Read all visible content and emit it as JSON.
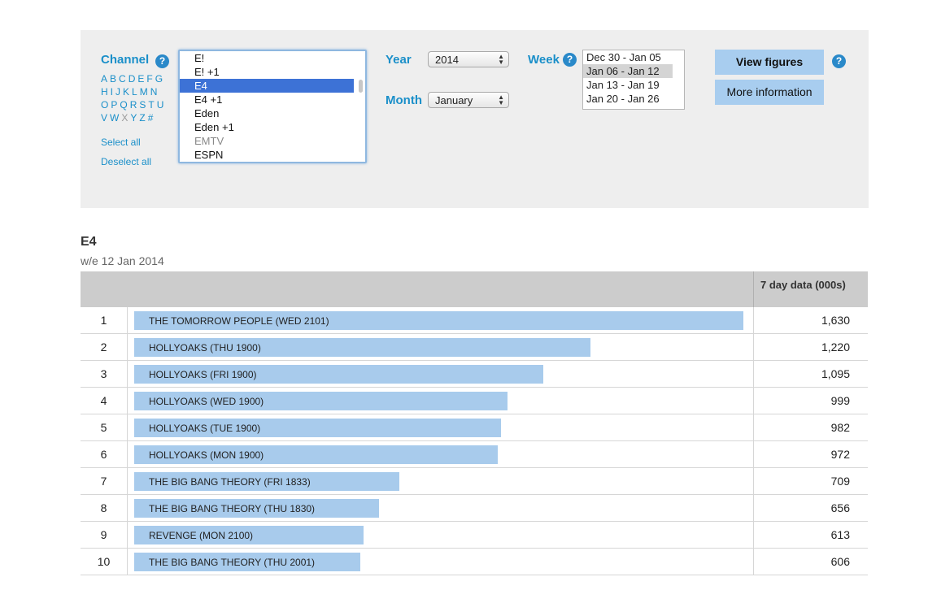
{
  "filters": {
    "channel_label": "Channel",
    "help": "?",
    "alphabet_rows": [
      [
        "A",
        "B",
        "C",
        "D",
        "E",
        "F",
        "G"
      ],
      [
        "H",
        "I",
        "J",
        "K",
        "L",
        "M",
        "N"
      ],
      [
        "O",
        "P",
        "Q",
        "R",
        "S",
        "T",
        "U"
      ],
      [
        "V",
        "W",
        "X",
        "Y",
        "Z",
        "#"
      ]
    ],
    "alphabet_disabled": [
      "X"
    ],
    "select_all": "Select all",
    "deselect_all": "Deselect all",
    "channels": [
      "E!",
      "E! +1",
      "E4",
      "E4 +1",
      "Eden",
      "Eden +1",
      "EMTV",
      "ESPN"
    ],
    "channel_selected": "E4",
    "channel_disabled": [
      "EMTV"
    ],
    "year_label": "Year",
    "year_value": "2014",
    "month_label": "Month",
    "month_value": "January",
    "week_label": "Week",
    "weeks": [
      "Dec 30 - Jan 05",
      "Jan 06 - Jan 12",
      "Jan 13 - Jan 19",
      "Jan 20 - Jan 26"
    ],
    "week_selected": "Jan 06 - Jan 12",
    "view_figures": "View figures",
    "more_information": "More information"
  },
  "result": {
    "channel": "E4",
    "week_ending": "w/e 12 Jan 2014",
    "column_header": "7 day data (000s)",
    "rows": [
      {
        "rank": "1",
        "programme": "THE TOMORROW PEOPLE (WED 2101)",
        "value": "1,630",
        "num": 1630
      },
      {
        "rank": "2",
        "programme": "HOLLYOAKS (THU 1900)",
        "value": "1,220",
        "num": 1220
      },
      {
        "rank": "3",
        "programme": "HOLLYOAKS (FRI 1900)",
        "value": "1,095",
        "num": 1095
      },
      {
        "rank": "4",
        "programme": "HOLLYOAKS (WED 1900)",
        "value": "999",
        "num": 999
      },
      {
        "rank": "5",
        "programme": "HOLLYOAKS (TUE 1900)",
        "value": "982",
        "num": 982
      },
      {
        "rank": "6",
        "programme": "HOLLYOAKS (MON 1900)",
        "value": "972",
        "num": 972
      },
      {
        "rank": "7",
        "programme": "THE BIG BANG THEORY (FRI 1833)",
        "value": "709",
        "num": 709
      },
      {
        "rank": "8",
        "programme": "THE BIG BANG THEORY (THU 1830)",
        "value": "656",
        "num": 656
      },
      {
        "rank": "9",
        "programme": "REVENGE (MON 2100)",
        "value": "613",
        "num": 613
      },
      {
        "rank": "10",
        "programme": "THE BIG BANG THEORY (THU 2001)",
        "value": "606",
        "num": 606
      }
    ]
  },
  "colors": {
    "accent": "#1a8fc9",
    "bar": "#a8cbec",
    "selected_channel": "#3d72d6"
  }
}
